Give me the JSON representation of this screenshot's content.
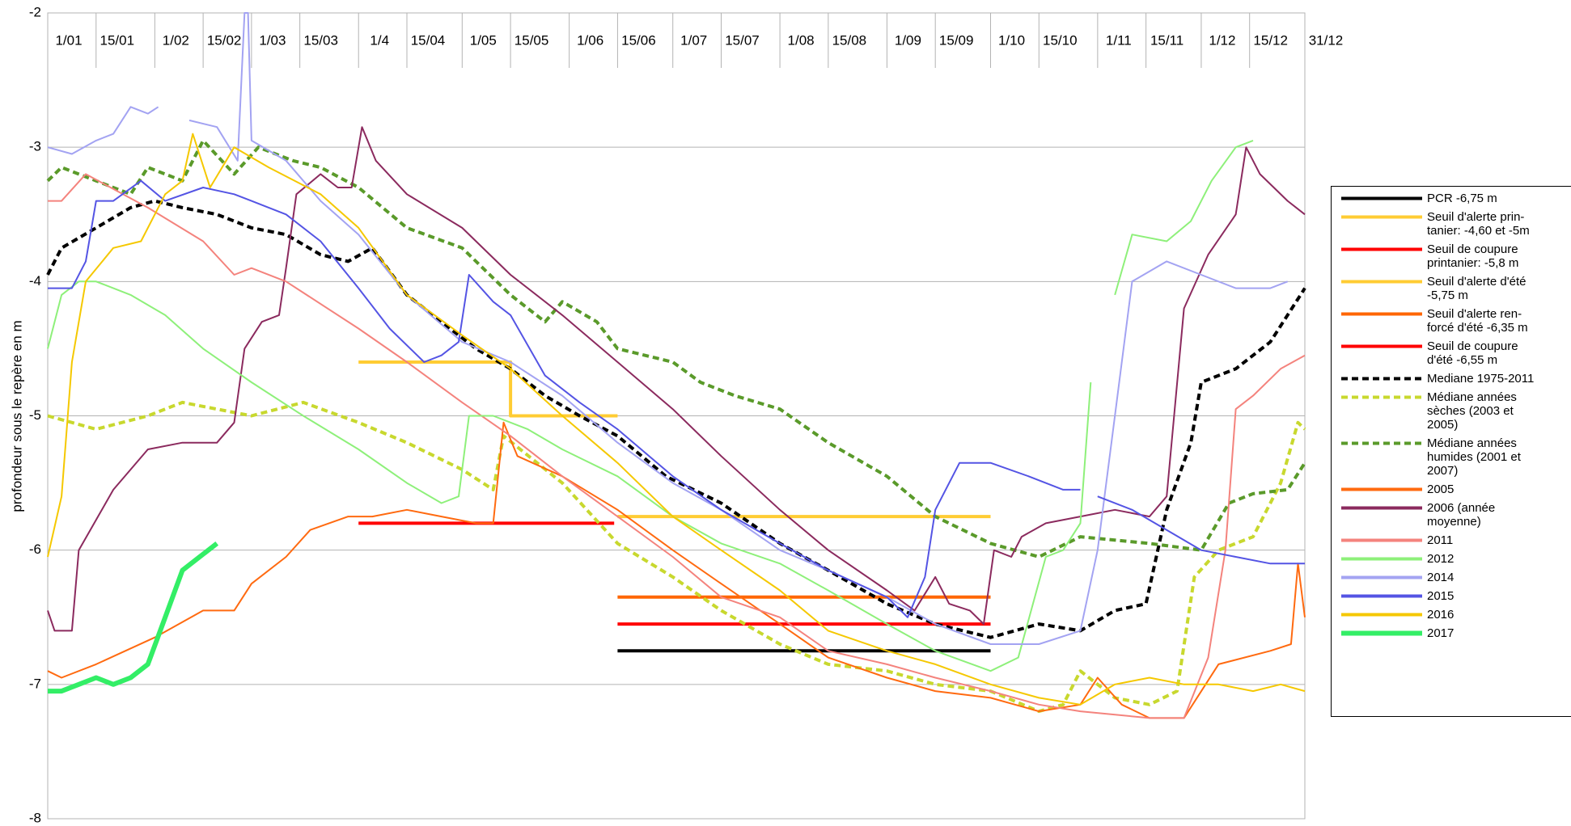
{
  "chart_data": {
    "type": "line",
    "y_label": "profondeur sous le repère en m",
    "ylim": [
      -8,
      -2
    ],
    "yticks": [
      -8,
      -7,
      -6,
      -5,
      -4,
      -3,
      -2
    ],
    "grid": true,
    "xlim": [
      1,
      365
    ],
    "xticks": [
      {
        "value": 1,
        "label": "1/01"
      },
      {
        "value": 15,
        "label": "15/01"
      },
      {
        "value": 32,
        "label": "1/02"
      },
      {
        "value": 46,
        "label": "15/02"
      },
      {
        "value": 60,
        "label": "1/03"
      },
      {
        "value": 74,
        "label": "15/03"
      },
      {
        "value": 91,
        "label": "1/4"
      },
      {
        "value": 105,
        "label": "15/04"
      },
      {
        "value": 121,
        "label": "1/05"
      },
      {
        "value": 135,
        "label": "15/05"
      },
      {
        "value": 152,
        "label": "1/06"
      },
      {
        "value": 166,
        "label": "15/06"
      },
      {
        "value": 182,
        "label": "1/07"
      },
      {
        "value": 196,
        "label": "15/07"
      },
      {
        "value": 213,
        "label": "1/08"
      },
      {
        "value": 227,
        "label": "15/08"
      },
      {
        "value": 244,
        "label": "1/09"
      },
      {
        "value": 258,
        "label": "15/09"
      },
      {
        "value": 274,
        "label": "1/10"
      },
      {
        "value": 288,
        "label": "15/10"
      },
      {
        "value": 305,
        "label": "1/11"
      },
      {
        "value": 319,
        "label": "15/11"
      },
      {
        "value": 335,
        "label": "1/12"
      },
      {
        "value": 349,
        "label": "15/12"
      },
      {
        "value": 365,
        "label": "31/12"
      }
    ],
    "legend": "right",
    "series": [
      {
        "name": "PCR -6,75 m",
        "color": "#000000",
        "line_width": 4,
        "dash": false,
        "x": [
          166,
          274
        ],
        "values": [
          -6.75,
          -6.75
        ]
      },
      {
        "name": "Seuil d'alerte prin-\ntanier: -4,60 et -5m",
        "color": "#ffcc33",
        "line_width": 4,
        "dash": false,
        "x": [
          91,
          135,
          135,
          166
        ],
        "values": [
          -4.6,
          -4.6,
          -5,
          -5
        ]
      },
      {
        "name": "Seuil de coupure\nprintanier: -5,8 m",
        "color": "#ff0000",
        "line_width": 4,
        "dash": false,
        "x": [
          91,
          165
        ],
        "values": [
          -5.8,
          -5.8
        ]
      },
      {
        "name": "Seuil d'alerte d'été\n-5,75 m",
        "color": "#ffcc33",
        "line_width": 4,
        "dash": false,
        "x": [
          166,
          274
        ],
        "values": [
          -5.75,
          -5.75
        ]
      },
      {
        "name": "Seuil d'alerte ren-\nforcé d'été -6,35 m",
        "color": "#ff6600",
        "line_width": 4,
        "dash": false,
        "x": [
          166,
          274
        ],
        "values": [
          -6.35,
          -6.35
        ]
      },
      {
        "name": "Seuil de coupure\nd'été  -6,55 m",
        "color": "#ff0000",
        "line_width": 4,
        "dash": false,
        "x": [
          166,
          274
        ],
        "values": [
          -6.55,
          -6.55
        ]
      },
      {
        "name": "Mediane 1975-2011",
        "color": "#000000",
        "line_width": 4,
        "dash": true,
        "x": [
          1,
          5,
          15,
          25,
          32,
          40,
          50,
          60,
          70,
          80,
          88,
          95,
          105,
          115,
          125,
          135,
          145,
          155,
          166,
          180,
          196,
          213,
          227,
          244,
          258,
          274,
          288,
          300,
          310,
          319,
          325,
          332,
          335,
          345,
          355,
          365
        ],
        "values": [
          -3.95,
          -3.75,
          -3.6,
          -3.45,
          -3.4,
          -3.45,
          -3.5,
          -3.6,
          -3.65,
          -3.8,
          -3.85,
          -3.75,
          -4.1,
          -4.3,
          -4.5,
          -4.65,
          -4.85,
          -5.0,
          -5.15,
          -5.45,
          -5.65,
          -5.95,
          -6.15,
          -6.4,
          -6.55,
          -6.65,
          -6.55,
          -6.6,
          -6.45,
          -6.4,
          -5.7,
          -5.2,
          -4.75,
          -4.65,
          -4.45,
          -4.05
        ]
      },
      {
        "name": "Médiane années\nsèches (2003 et\n2005)",
        "color": "#c8d82e",
        "line_width": 4,
        "dash": true,
        "x": [
          1,
          15,
          30,
          40,
          60,
          75,
          91,
          105,
          121,
          130,
          133,
          150,
          166,
          182,
          196,
          213,
          227,
          244,
          258,
          274,
          288,
          295,
          300,
          310,
          320,
          328,
          333,
          340,
          350,
          358,
          363,
          365
        ],
        "values": [
          -5.0,
          -5.1,
          -5.0,
          -4.9,
          -5.0,
          -4.9,
          -5.05,
          -5.2,
          -5.4,
          -5.55,
          -5.15,
          -5.5,
          -5.95,
          -6.2,
          -6.45,
          -6.7,
          -6.85,
          -6.9,
          -7.0,
          -7.05,
          -7.2,
          -7.15,
          -6.9,
          -7.1,
          -7.15,
          -7.05,
          -6.2,
          -6.0,
          -5.9,
          -5.5,
          -5.05,
          -5.1
        ]
      },
      {
        "name": "Médiane années\nhumides (2001 et\n2007)",
        "color": "#5a9a2a",
        "line_width": 4,
        "dash": true,
        "x": [
          1,
          5,
          15,
          25,
          30,
          40,
          46,
          55,
          62,
          72,
          80,
          91,
          105,
          121,
          135,
          145,
          150,
          160,
          166,
          182,
          190,
          200,
          213,
          227,
          244,
          258,
          274,
          288,
          300,
          320,
          335,
          343,
          350,
          360,
          365
        ],
        "values": [
          -3.25,
          -3.15,
          -3.25,
          -3.35,
          -3.15,
          -3.25,
          -2.95,
          -3.2,
          -3.0,
          -3.1,
          -3.15,
          -3.3,
          -3.6,
          -3.75,
          -4.1,
          -4.3,
          -4.15,
          -4.3,
          -4.5,
          -4.6,
          -4.75,
          -4.85,
          -4.95,
          -5.2,
          -5.45,
          -5.75,
          -5.95,
          -6.05,
          -5.9,
          -5.95,
          -6.0,
          -5.65,
          -5.58,
          -5.55,
          -5.35
        ]
      },
      {
        "name": "2005",
        "color": "#ff6a10",
        "line_width": 2,
        "dash": false,
        "x": [
          1,
          5,
          15,
          32,
          46,
          55,
          60,
          70,
          77,
          88,
          95,
          105,
          115,
          125,
          130,
          133,
          137,
          150,
          166,
          182,
          196,
          213,
          227,
          244,
          258,
          274,
          288,
          300,
          305,
          312,
          320,
          330,
          340,
          355,
          361,
          363,
          365
        ],
        "values": [
          -6.9,
          -6.95,
          -6.85,
          -6.65,
          -6.45,
          -6.45,
          -6.25,
          -6.05,
          -5.85,
          -5.75,
          -5.75,
          -5.7,
          -5.75,
          -5.8,
          -5.8,
          -5.05,
          -5.3,
          -5.45,
          -5.7,
          -6.0,
          -6.25,
          -6.55,
          -6.8,
          -6.95,
          -7.05,
          -7.1,
          -7.2,
          -7.15,
          -6.95,
          -7.15,
          -7.25,
          -7.25,
          -6.85,
          -6.75,
          -6.7,
          -6.1,
          -6.5
        ]
      },
      {
        "name": "2006 (année\nmoyenne)",
        "color": "#8b2a5e",
        "line_width": 2,
        "dash": false,
        "x": [
          1,
          3,
          8,
          10,
          20,
          30,
          40,
          50,
          55,
          58,
          63,
          68,
          70,
          73,
          80,
          85,
          89,
          92,
          96,
          105,
          121,
          135,
          150,
          166,
          182,
          196,
          213,
          227,
          244,
          252,
          258,
          262,
          268,
          272,
          275,
          280,
          283,
          290,
          300,
          310,
          320,
          325,
          330,
          337,
          345,
          348,
          352,
          360,
          365
        ],
        "values": [
          -6.45,
          -6.6,
          -6.6,
          -6.0,
          -5.55,
          -5.25,
          -5.2,
          -5.2,
          -5.05,
          -4.5,
          -4.3,
          -4.25,
          -3.9,
          -3.35,
          -3.2,
          -3.3,
          -3.3,
          -2.85,
          -3.1,
          -3.35,
          -3.6,
          -3.95,
          -4.25,
          -4.6,
          -4.95,
          -5.3,
          -5.7,
          -6.0,
          -6.3,
          -6.45,
          -6.2,
          -6.4,
          -6.45,
          -6.55,
          -6.0,
          -6.05,
          -5.9,
          -5.8,
          -5.75,
          -5.7,
          -5.75,
          -5.6,
          -4.2,
          -3.8,
          -3.5,
          -3.0,
          -3.2,
          -3.4,
          -3.5
        ]
      },
      {
        "name": "2011",
        "color": "#f4837d",
        "line_width": 2,
        "dash": false,
        "x": [
          1,
          5,
          12,
          30,
          46,
          55,
          60,
          70,
          91,
          105,
          121,
          135,
          150,
          166,
          182,
          196,
          213,
          227,
          244,
          258,
          274,
          288,
          300,
          320,
          330,
          337,
          342,
          345,
          350,
          358,
          365
        ],
        "values": [
          -3.4,
          -3.4,
          -3.2,
          -3.45,
          -3.7,
          -3.95,
          -3.9,
          -4.0,
          -4.35,
          -4.6,
          -4.9,
          -5.15,
          -5.45,
          -5.75,
          -6.05,
          -6.35,
          -6.5,
          -6.75,
          -6.85,
          -6.95,
          -7.05,
          -7.15,
          -7.2,
          -7.25,
          -7.25,
          -6.8,
          -6.0,
          -4.95,
          -4.85,
          -4.65,
          -4.55
        ]
      },
      {
        "name": "2012",
        "color": "#8ef07a",
        "line_width": 2,
        "dash": false,
        "x": [
          1,
          5,
          10,
          15,
          25,
          35,
          46,
          60,
          75,
          91,
          105,
          115,
          120,
          123,
          130,
          140,
          150,
          166,
          182,
          196,
          213,
          227,
          244,
          258,
          274,
          282,
          290,
          295,
          300,
          303,
          306,
          310,
          315,
          325,
          332,
          338,
          345,
          350
        ],
        "values": [
          -4.5,
          -4.1,
          -4.0,
          -4.0,
          -4.1,
          -4.25,
          -4.5,
          -4.75,
          -5.0,
          -5.25,
          -5.5,
          -5.65,
          -5.6,
          -5.0,
          -5.0,
          -5.1,
          -5.25,
          -5.45,
          -5.75,
          -5.95,
          -6.1,
          -6.3,
          -6.55,
          -6.75,
          -6.9,
          -6.8,
          -6.05,
          -6.0,
          -5.8,
          -4.75,
          null,
          -4.1,
          -3.65,
          -3.7,
          -3.55,
          -3.25,
          -3.0,
          -2.95
        ]
      },
      {
        "name": "2014",
        "color": "#a3a3f2",
        "line_width": 2,
        "dash": false,
        "x": [
          1,
          8,
          15,
          20,
          25,
          30,
          33,
          36,
          42,
          50,
          56,
          58,
          59,
          60,
          70,
          80,
          91,
          105,
          121,
          135,
          150,
          166,
          182,
          196,
          213,
          227,
          244,
          258,
          274,
          288,
          300,
          305,
          310,
          315,
          325,
          335,
          345,
          355,
          360
        ],
        "values": [
          -3.0,
          -3.05,
          -2.95,
          -2.9,
          -2.7,
          -2.75,
          -2.7,
          null,
          -2.8,
          -2.85,
          -3.1,
          -2.0,
          -2.0,
          -2.95,
          -3.1,
          -3.4,
          -3.65,
          -4.1,
          -4.45,
          -4.6,
          -4.85,
          -5.2,
          -5.5,
          -5.7,
          -6.0,
          -6.15,
          -6.35,
          -6.55,
          -6.7,
          -6.7,
          -6.6,
          -6.0,
          -5.0,
          -4.0,
          -3.85,
          -3.95,
          -4.05,
          -4.05,
          -4.0
        ]
      },
      {
        "name": "2015",
        "color": "#5454e4",
        "line_width": 2,
        "dash": false,
        "x": [
          1,
          8,
          12,
          15,
          20,
          28,
          35,
          46,
          55,
          60,
          70,
          80,
          91,
          100,
          110,
          115,
          120,
          123,
          130,
          135,
          145,
          155,
          166,
          182,
          196,
          213,
          227,
          244,
          250,
          255,
          258,
          265,
          274,
          285,
          295,
          300,
          302,
          305,
          315,
          325,
          335,
          345,
          355,
          365
        ],
        "values": [
          -4.05,
          -4.05,
          -3.85,
          -3.4,
          -3.4,
          -3.25,
          -3.4,
          -3.3,
          -3.35,
          -3.4,
          -3.5,
          -3.7,
          -4.05,
          -4.35,
          -4.6,
          -4.55,
          -4.45,
          -3.95,
          -4.15,
          -4.25,
          -4.7,
          -4.9,
          -5.1,
          -5.45,
          -5.7,
          -5.95,
          -6.15,
          -6.35,
          -6.5,
          -6.2,
          -5.7,
          -5.35,
          -5.35,
          -5.45,
          -5.55,
          -5.55,
          null,
          -5.6,
          -5.7,
          -5.85,
          -6.0,
          -6.05,
          -6.1,
          -6.1
        ]
      },
      {
        "name": "2016",
        "color": "#f5c800",
        "line_width": 2,
        "dash": false,
        "x": [
          1,
          5,
          8,
          12,
          20,
          28,
          35,
          40,
          43,
          48,
          55,
          65,
          80,
          91,
          105,
          121,
          135,
          150,
          166,
          182,
          196,
          213,
          227,
          244,
          258,
          274,
          288,
          300,
          310,
          320,
          330,
          340,
          350,
          358,
          365
        ],
        "values": [
          -6.05,
          -5.6,
          -4.6,
          -4.0,
          -3.75,
          -3.7,
          -3.35,
          -3.25,
          -2.9,
          -3.3,
          -3.0,
          -3.15,
          -3.35,
          -3.6,
          -4.1,
          -4.4,
          -4.65,
          -5.0,
          -5.35,
          -5.75,
          -6.0,
          -6.3,
          -6.6,
          -6.75,
          -6.85,
          -7.0,
          -7.1,
          -7.15,
          -7.0,
          -6.95,
          -7.0,
          -7.0,
          -7.05,
          -7.0,
          -7.05
        ]
      },
      {
        "name": "2017",
        "color": "#33ee66",
        "line_width": 6,
        "dash": false,
        "x": [
          1,
          5,
          10,
          15,
          20,
          25,
          30,
          35,
          40,
          45,
          50
        ],
        "values": [
          -7.05,
          -7.05,
          -7.0,
          -6.95,
          -7.0,
          -6.95,
          -6.85,
          -6.5,
          -6.15,
          -6.05,
          -5.95
        ]
      }
    ]
  }
}
